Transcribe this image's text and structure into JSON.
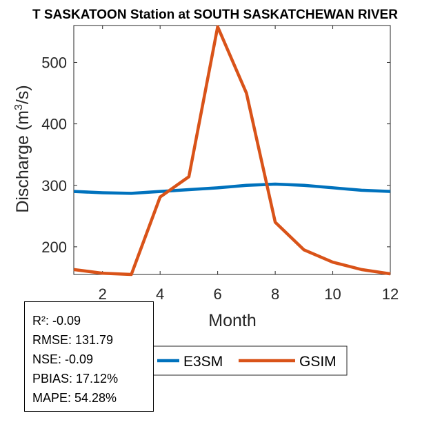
{
  "chart_data": {
    "type": "line",
    "title": "T SASKATOON  Station at  SOUTH SASKATCHEWAN RIVER",
    "xlabel": "Month",
    "ylabel_main": "Discharge (m",
    "ylabel_sup": "3",
    "ylabel_tail": "/s)",
    "xlim": [
      1,
      12
    ],
    "ylim": [
      155,
      560
    ],
    "xticks": [
      2,
      4,
      6,
      8,
      10,
      12
    ],
    "yticks": [
      200,
      300,
      400,
      500
    ],
    "x": [
      1,
      2,
      3,
      4,
      5,
      6,
      7,
      8,
      9,
      10,
      11,
      12
    ],
    "series": [
      {
        "name": "E3SM",
        "color": "#0072BD",
        "values": [
          290,
          288,
          287,
          290,
          293,
          296,
          300,
          302,
          300,
          296,
          292,
          290
        ]
      },
      {
        "name": "GSIM",
        "color": "#D95319",
        "values": [
          163,
          157,
          155,
          281,
          314,
          558,
          450,
          240,
          195,
          175,
          163,
          156
        ]
      }
    ],
    "legend": {
      "placement": "bottom",
      "orientation": "horizontal"
    },
    "grid": false
  },
  "stats": [
    "R²: -0.09",
    "RMSE: 131.79",
    "NSE: -0.09",
    "PBIAS: 17.12%",
    "MAPE: 54.28%"
  ]
}
